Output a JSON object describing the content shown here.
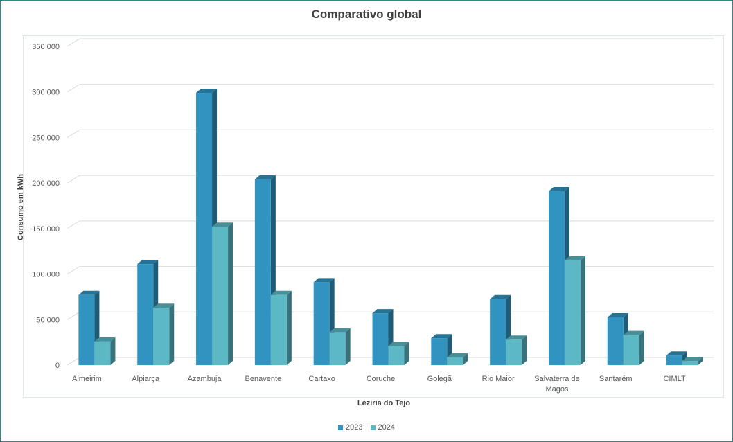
{
  "chart_data": {
    "type": "bar",
    "title": "Comparativo global",
    "xlabel": "Lezíria do Tejo",
    "ylabel": "Consumo em kWh",
    "ylim": [
      0,
      350000
    ],
    "yticks": [
      0,
      50000,
      100000,
      150000,
      200000,
      250000,
      300000,
      350000
    ],
    "ytick_labels": [
      "0",
      "50 000",
      "100 000",
      "150 000",
      "200 000",
      "250 000",
      "300 000",
      "350 000"
    ],
    "categories": [
      "Almeirim",
      "Alpiarça",
      "Azambuja",
      "Benavente",
      "Cartaxo",
      "Coruche",
      "Golegã",
      "Rio Maior",
      "Salvaterra de Magos",
      "Santarém",
      "CIMLT"
    ],
    "category_lines": [
      [
        "Almeirim"
      ],
      [
        "Alpiarça"
      ],
      [
        "Azambuja"
      ],
      [
        "Benavente"
      ],
      [
        "Cartaxo"
      ],
      [
        "Coruche"
      ],
      [
        "Golegã"
      ],
      [
        "Rio Maior"
      ],
      [
        "Salvaterra de",
        "Magos"
      ],
      [
        "Santarém"
      ],
      [
        "CIMLT"
      ]
    ],
    "series": [
      {
        "name": "2023",
        "color": "#3194c0",
        "values": [
          77000,
          111000,
          299000,
          204000,
          91000,
          57000,
          29500,
          72500,
          191000,
          52500,
          10500
        ]
      },
      {
        "name": "2024",
        "color": "#5bb8c4",
        "values": [
          26000,
          63000,
          152000,
          77000,
          36000,
          21000,
          8500,
          28000,
          115000,
          33000,
          4500
        ]
      }
    ],
    "grid": true,
    "legend_position": "bottom"
  }
}
